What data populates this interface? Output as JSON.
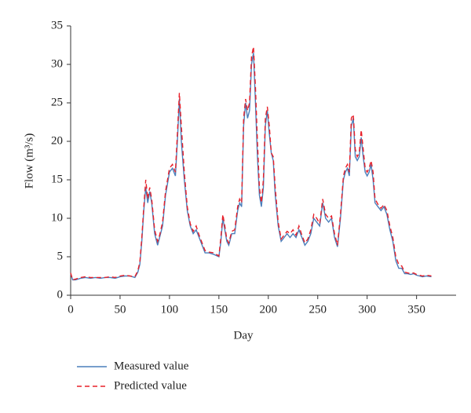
{
  "chart_data": {
    "type": "line",
    "xlabel": "Day",
    "ylabel": "Flow (m³/s)",
    "xlim": [
      0,
      390
    ],
    "ylim": [
      0,
      35
    ],
    "xticks": [
      0,
      50,
      100,
      150,
      200,
      250,
      300,
      350
    ],
    "yticks": [
      0,
      5,
      10,
      15,
      20,
      25,
      30,
      35
    ],
    "legend": "bottom-left",
    "x": [
      0,
      2,
      5,
      10,
      15,
      20,
      25,
      30,
      35,
      40,
      45,
      50,
      55,
      60,
      65,
      68,
      70,
      72,
      74,
      76,
      78,
      80,
      82,
      85,
      88,
      90,
      93,
      96,
      100,
      103,
      106,
      108,
      110,
      112,
      115,
      118,
      121,
      124,
      127,
      130,
      133,
      136,
      140,
      145,
      150,
      152,
      154,
      156,
      158,
      160,
      163,
      166,
      169,
      171,
      173,
      175,
      177,
      179,
      181,
      183,
      185,
      187,
      189,
      191,
      193,
      195,
      197,
      199,
      201,
      203,
      205,
      207,
      210,
      213,
      216,
      219,
      222,
      225,
      228,
      231,
      234,
      237,
      240,
      243,
      246,
      249,
      252,
      255,
      258,
      261,
      264,
      267,
      270,
      273,
      276,
      278,
      280,
      282,
      284,
      286,
      288,
      290,
      292,
      294,
      296,
      298,
      300,
      302,
      304,
      306,
      308,
      311,
      314,
      317,
      320,
      323,
      326,
      329,
      332,
      335,
      338,
      341,
      344,
      347,
      350,
      353,
      356,
      360,
      365
    ],
    "series": [
      {
        "name": "Measured value",
        "color": "#4a7ebb",
        "style": "solid",
        "values": [
          2.8,
          2.0,
          2.0,
          2.2,
          2.3,
          2.2,
          2.3,
          2.2,
          2.3,
          2.3,
          2.2,
          2.4,
          2.5,
          2.5,
          2.3,
          3.0,
          4.0,
          7,
          11,
          14,
          12,
          13.5,
          12,
          8,
          6.5,
          7.5,
          9,
          13,
          16,
          16.5,
          15.5,
          20,
          25.5,
          20,
          15,
          11,
          9,
          8,
          8.5,
          7.5,
          6.5,
          5.5,
          5.5,
          5.3,
          5,
          7,
          10,
          8.5,
          7,
          6.5,
          8,
          8,
          11,
          12,
          11.5,
          22,
          25,
          23,
          24,
          30,
          31.5,
          25,
          18,
          13,
          11.5,
          14,
          22,
          24,
          21,
          18.5,
          17.5,
          13,
          9,
          7,
          7.5,
          8,
          7.5,
          8,
          7.5,
          8.5,
          7.5,
          6.5,
          7,
          8,
          10,
          9.5,
          9,
          12,
          10,
          9.5,
          10,
          7.5,
          6.3,
          10,
          15,
          16,
          16.5,
          15.5,
          22,
          23,
          18,
          17.5,
          18,
          20.5,
          18,
          16,
          15.5,
          16,
          17,
          15,
          12,
          11.5,
          11,
          11.5,
          10.5,
          8.5,
          7,
          4.5,
          3.5,
          3.5,
          2.8,
          2.8,
          2.7,
          2.8,
          2.6,
          2.5,
          2.4,
          2.5,
          2.4
        ]
      },
      {
        "name": "Predicted value",
        "color": "#e8202a",
        "style": "dashed",
        "values": [
          2.9,
          2.0,
          2.1,
          2.3,
          2.4,
          2.3,
          2.3,
          2.3,
          2.3,
          2.4,
          2.3,
          2.5,
          2.6,
          2.5,
          2.4,
          3.2,
          4.3,
          7.5,
          11.5,
          15,
          12.5,
          14,
          12.5,
          8.5,
          7,
          7.8,
          9.5,
          13.5,
          16.5,
          17,
          16,
          21,
          26.3,
          22,
          16,
          11.5,
          9.3,
          8.3,
          9,
          7.8,
          6.8,
          5.8,
          5.6,
          5.5,
          5.1,
          7.5,
          10.5,
          9,
          7.3,
          6.8,
          8.3,
          8.5,
          11.5,
          12.5,
          12,
          23,
          25.5,
          24,
          25,
          31,
          32.3,
          27,
          20,
          14,
          12,
          15,
          23,
          24.5,
          22,
          18.5,
          18,
          14,
          9.5,
          7.3,
          7.8,
          8.3,
          8,
          8.5,
          7.8,
          9,
          7.8,
          6.8,
          7.3,
          8.5,
          10.5,
          10,
          9.3,
          12.5,
          10.5,
          10,
          10.3,
          8,
          6.5,
          10.5,
          15.5,
          16.5,
          17,
          16,
          23,
          23.5,
          19,
          18,
          18.5,
          21.5,
          19,
          16.5,
          16,
          16.5,
          17.5,
          16,
          12.5,
          11.8,
          11.3,
          11.8,
          11,
          9,
          7.5,
          5,
          4,
          3.8,
          3,
          2.9,
          2.8,
          2.9,
          2.7,
          2.6,
          2.5,
          2.6,
          2.5
        ]
      }
    ]
  }
}
